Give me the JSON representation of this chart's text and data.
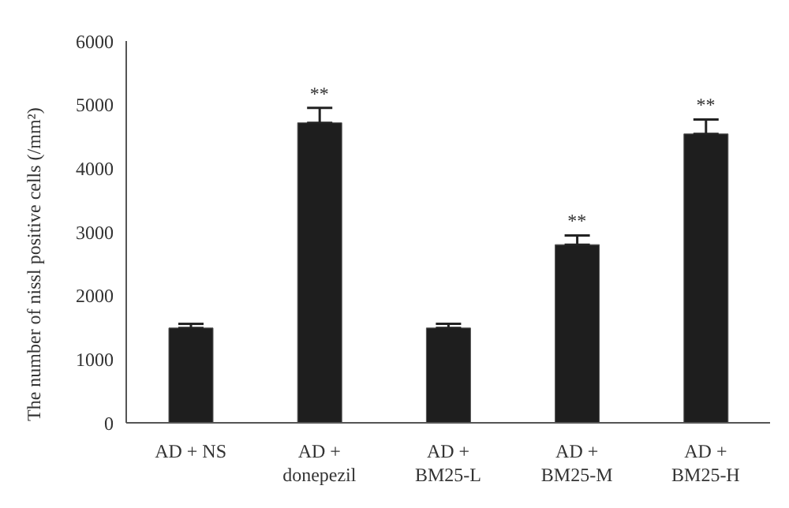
{
  "chart_data": {
    "type": "bar",
    "ylabel": "The number of nissl positive cells (/mm²)",
    "categories": [
      "AD + NS",
      "AD + donepezil",
      "AD + BM25-L",
      "AD + BM25-M",
      "AD + BM25-H"
    ],
    "values": [
      1490,
      4715,
      1490,
      2800,
      4540
    ],
    "errors": [
      [
        1490,
        1555
      ],
      [
        4715,
        4948
      ],
      [
        1490,
        1555
      ],
      [
        2800,
        2945
      ],
      [
        4540,
        4767
      ]
    ],
    "color": "#1e1e1e",
    "ylim": [
      0,
      6000
    ],
    "yticks": [
      0,
      1000,
      2000,
      3000,
      4000,
      5000,
      6000
    ],
    "grid": false,
    "legend": false,
    "annotations": [
      {
        "text": "**",
        "x": "AD + donepezil",
        "y": 4948
      },
      {
        "text": "**",
        "x": "AD + BM25-M",
        "y": 2945
      },
      {
        "text": "**",
        "x": "AD + BM25-H",
        "y": 4767
      }
    ]
  }
}
